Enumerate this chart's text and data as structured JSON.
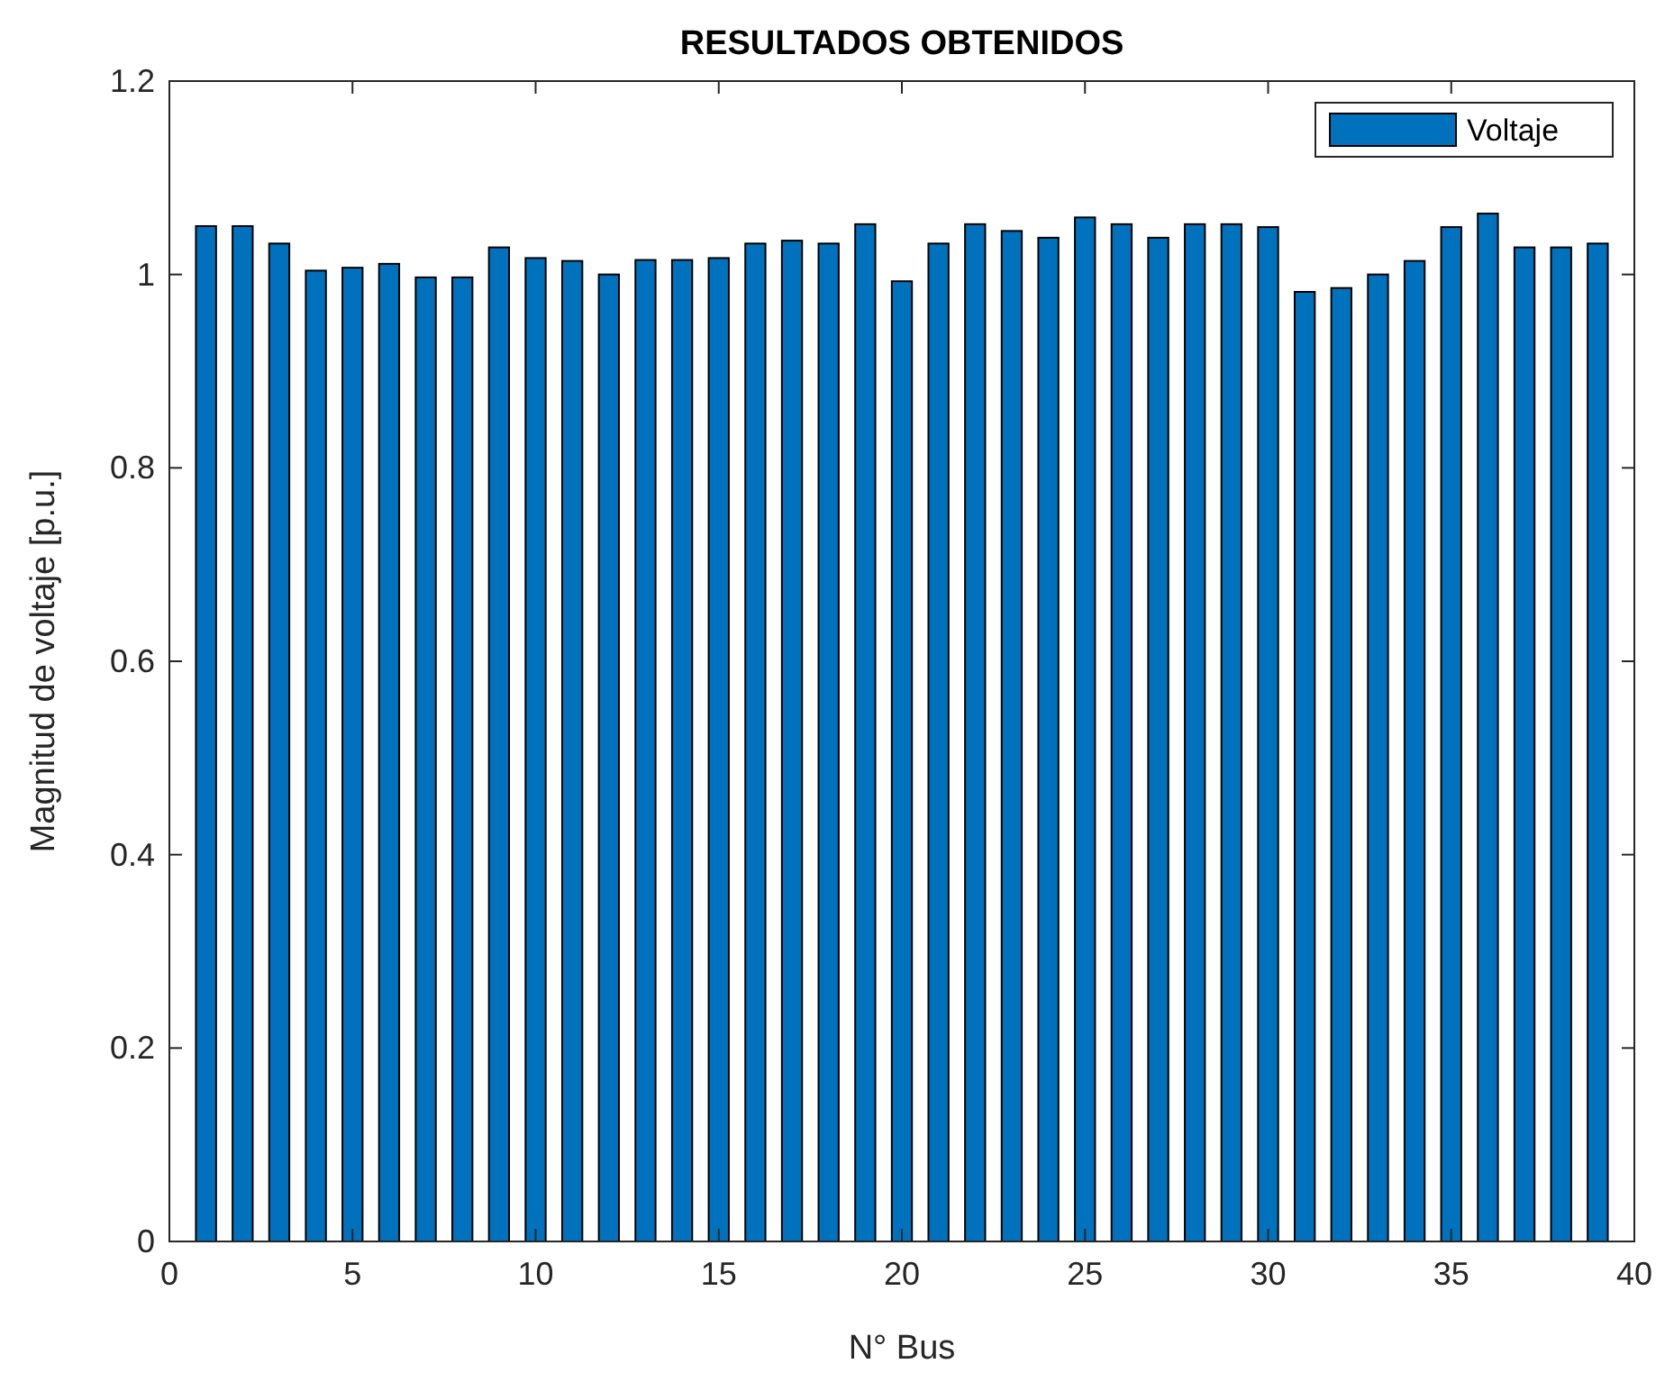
{
  "chart_data": {
    "type": "bar",
    "title": "RESULTADOS OBTENIDOS",
    "xlabel": "N° Bus",
    "ylabel": "Magnitud de voltaje [p.u.]",
    "x": [
      1,
      2,
      3,
      4,
      5,
      6,
      7,
      8,
      9,
      10,
      11,
      12,
      13,
      14,
      15,
      16,
      17,
      18,
      19,
      20,
      21,
      22,
      23,
      24,
      25,
      26,
      27,
      28,
      29,
      30,
      31,
      32,
      33,
      34,
      35,
      36,
      37,
      38,
      39
    ],
    "series": [
      {
        "name": "Voltaje",
        "color": "#0072bd",
        "values": [
          1.05,
          1.05,
          1.032,
          1.004,
          1.007,
          1.011,
          0.997,
          0.997,
          1.028,
          1.017,
          1.014,
          1.0,
          1.015,
          1.015,
          1.017,
          1.032,
          1.035,
          1.032,
          1.052,
          0.993,
          1.032,
          1.052,
          1.045,
          1.038,
          1.059,
          1.052,
          1.038,
          1.052,
          1.052,
          1.049,
          0.982,
          0.986,
          1.0,
          1.014,
          1.049,
          1.063,
          1.028,
          1.028,
          1.032
        ]
      }
    ],
    "xlim": [
      0,
      40
    ],
    "xticks": [
      0,
      5,
      10,
      15,
      20,
      25,
      30,
      35,
      40
    ],
    "ylim": [
      0,
      1.2
    ],
    "yticks": [
      0,
      0.2,
      0.4,
      0.6,
      0.8,
      1,
      1.2
    ],
    "grid": false,
    "legend": "top right"
  }
}
